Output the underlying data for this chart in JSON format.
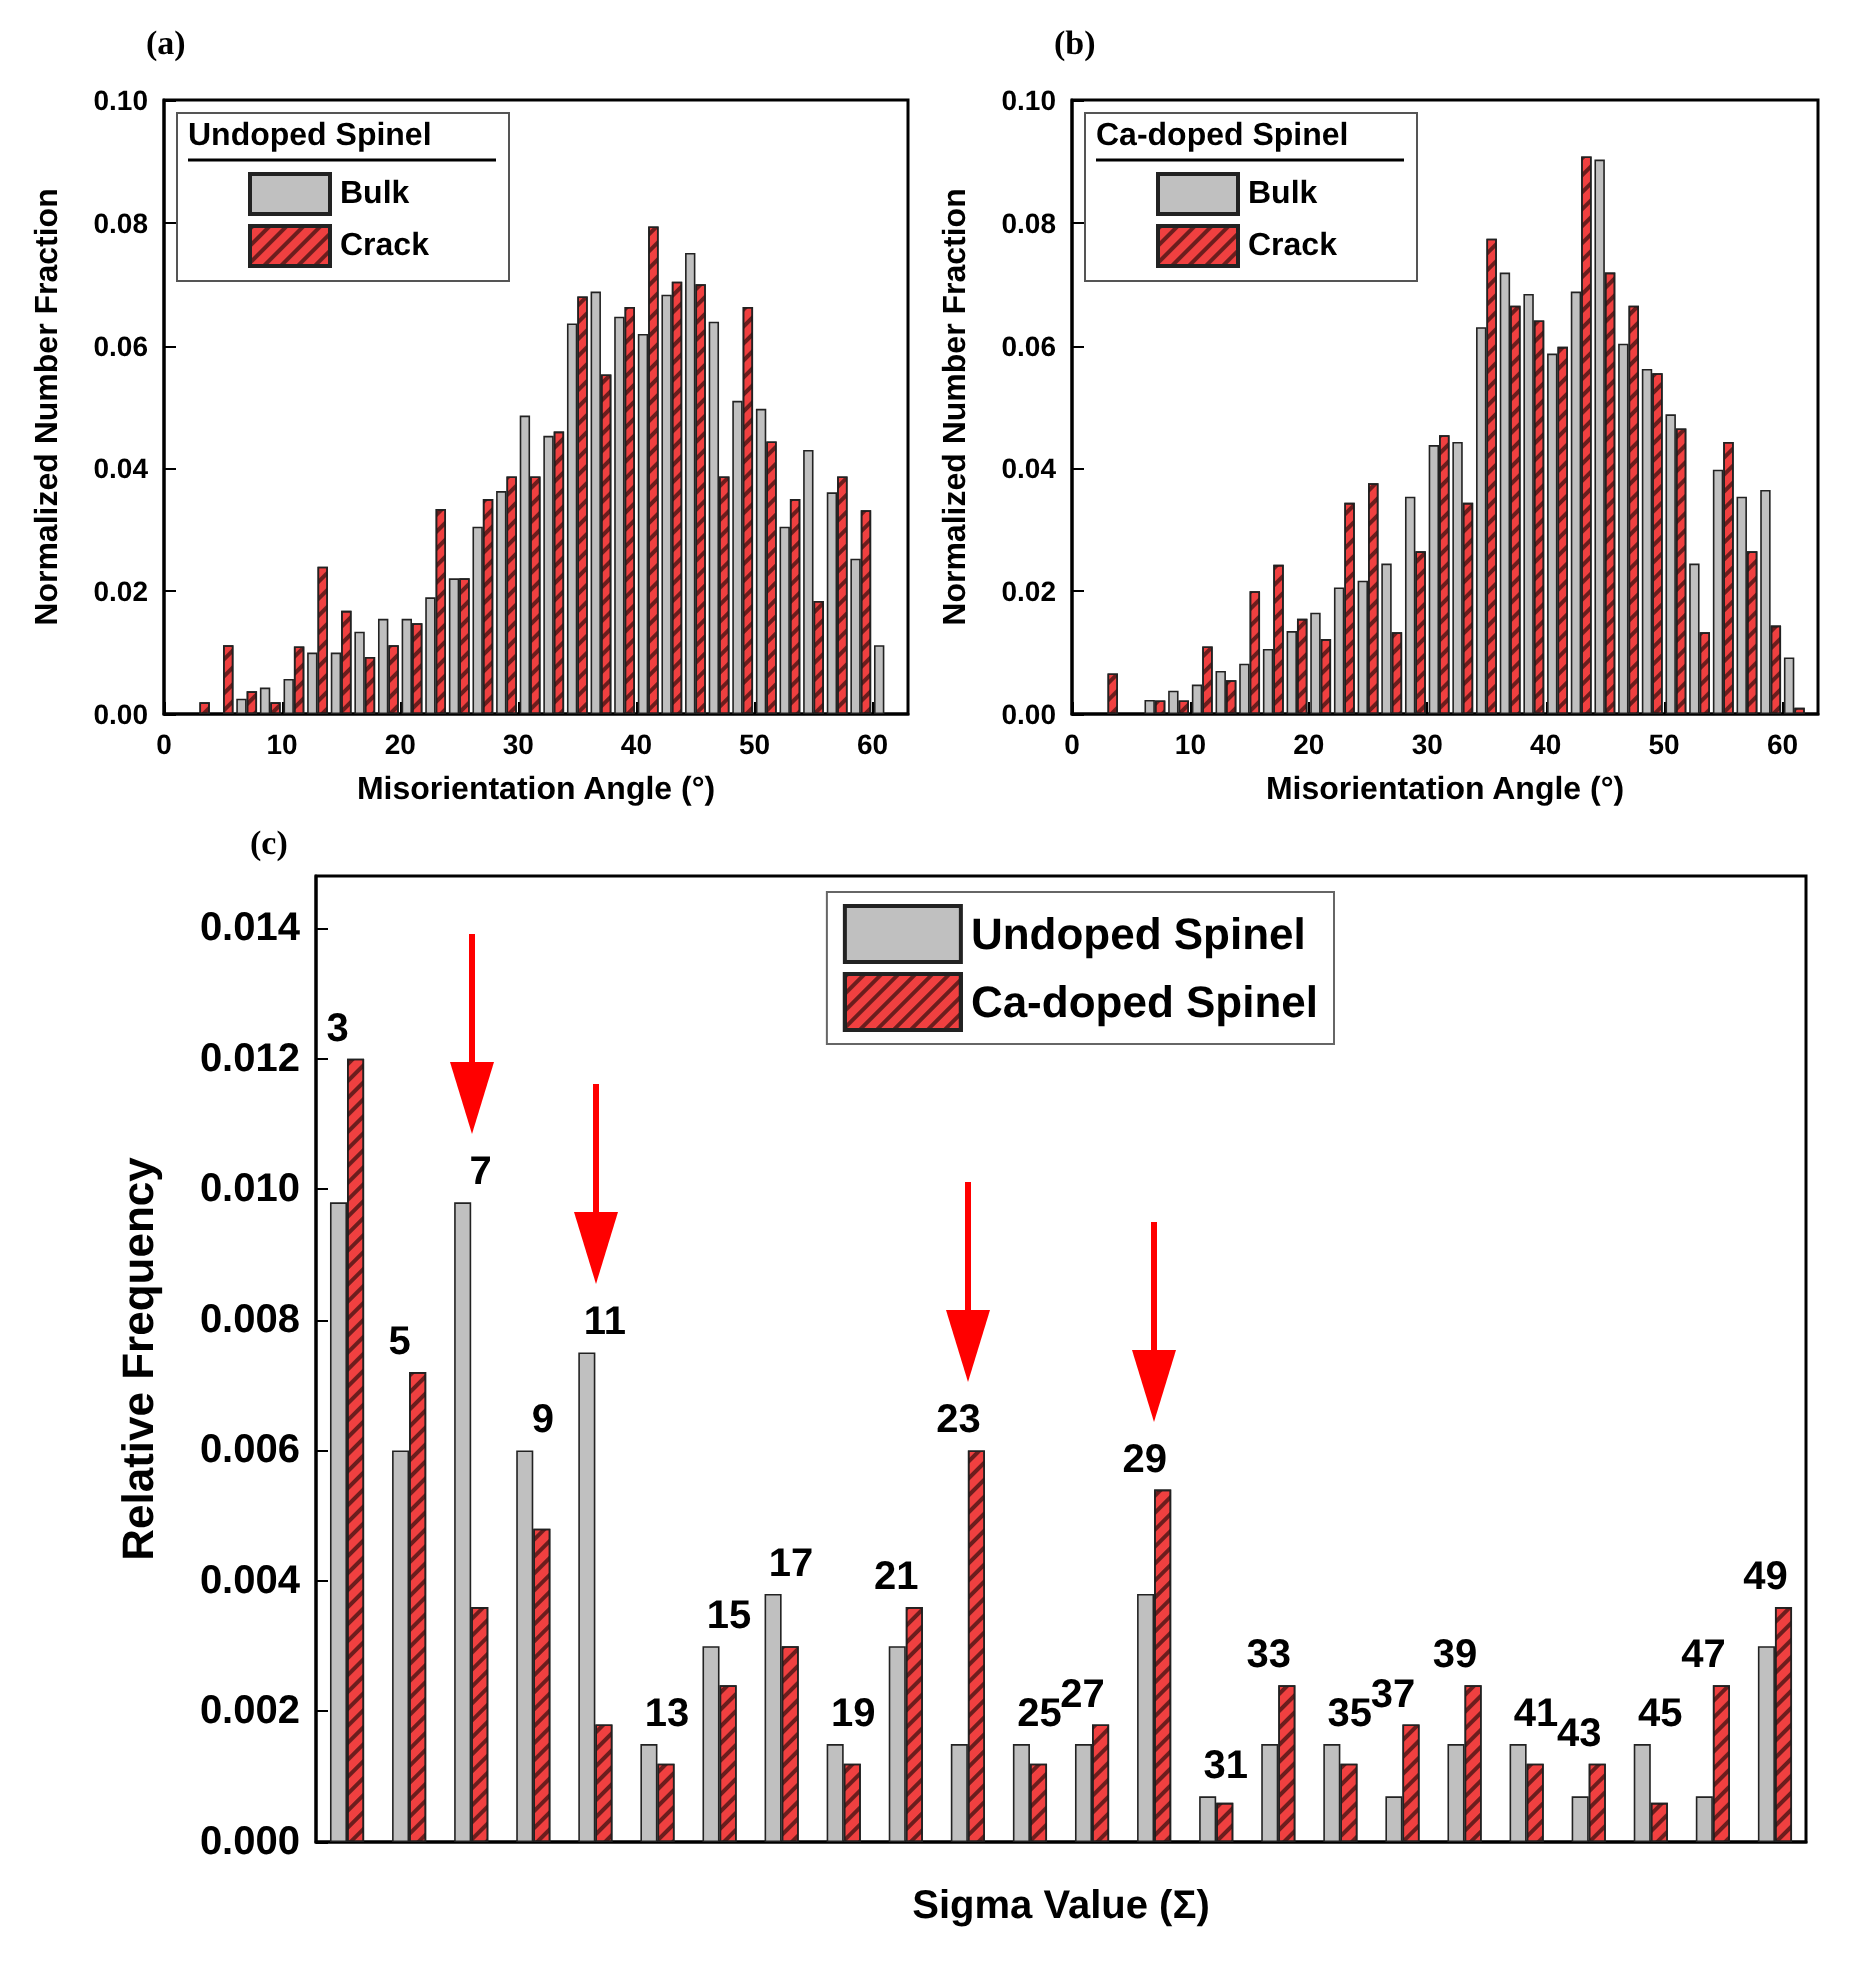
{
  "chart_data": [
    {
      "type": "bar",
      "title": "(a)",
      "xlabel": "Misorientation Angle (°)",
      "ylabel": "Normalized Number Fraction",
      "legend_title": "Undoped Spinel",
      "legend": "top left",
      "grid": false,
      "x": [
        3,
        5,
        7,
        9,
        11,
        13,
        15,
        17,
        19,
        21,
        23,
        25,
        27,
        29,
        31,
        33,
        35,
        37,
        39,
        41,
        43,
        45,
        47,
        49,
        51,
        53,
        55,
        57,
        59,
        61
      ],
      "series": [
        {
          "name": "Bulk",
          "color": "#c0c0c0",
          "values": [
            null,
            null,
            0.0025,
            0.0043,
            0.0057,
            0.01,
            0.01,
            0.0134,
            0.0155,
            0.0155,
            0.019,
            0.0221,
            0.0305,
            0.0363,
            0.0486,
            0.0453,
            0.0636,
            0.0688,
            0.0647,
            0.0619,
            0.0683,
            0.0751,
            0.0639,
            0.051,
            0.0497,
            0.0305,
            0.043,
            0.0361,
            0.0253,
            0.0112
          ]
        },
        {
          "name": "Crack",
          "color": "#f04040",
          "values": [
            0.0019,
            0.0112,
            0.0037,
            0.0019,
            0.011,
            0.024,
            0.0168,
            0.0093,
            0.0112,
            0.0148,
            0.0334,
            0.0221,
            0.035,
            0.0387,
            0.0387,
            0.046,
            0.068,
            0.0553,
            0.0663,
            0.0794,
            0.0704,
            0.07,
            0.0387,
            0.0663,
            0.0444,
            0.035,
            0.0184,
            0.0387,
            0.0332,
            null
          ]
        }
      ],
      "xlim": [
        0,
        63
      ],
      "xticks": [
        0,
        10,
        20,
        30,
        40,
        50,
        60
      ],
      "ylim": [
        0,
        0.1
      ],
      "yticks": [
        {
          "value": 0,
          "label": "0.00"
        },
        {
          "value": 0.02,
          "label": "0.02"
        },
        {
          "value": 0.04,
          "label": "0.04"
        },
        {
          "value": 0.06,
          "label": "0.06"
        },
        {
          "value": 0.08,
          "label": "0.08"
        },
        {
          "value": 0.1,
          "label": "0.10"
        }
      ]
    },
    {
      "type": "bar",
      "title": "(b)",
      "xlabel": "Misorientation Angle (°)",
      "ylabel": "Normalized Number Fraction",
      "legend_title": "Ca-doped Spinel",
      "legend": "top left",
      "grid": false,
      "x": [
        3,
        5,
        7,
        9,
        11,
        13,
        15,
        17,
        19,
        21,
        23,
        25,
        27,
        29,
        31,
        33,
        35,
        37,
        39,
        41,
        43,
        45,
        47,
        49,
        51,
        53,
        55,
        57,
        59,
        61
      ],
      "series": [
        {
          "name": "Bulk",
          "color": "#c0c0c0",
          "values": [
            null,
            null,
            0.0023,
            0.0038,
            0.0048,
            0.007,
            0.0082,
            0.0106,
            0.0135,
            0.0165,
            0.0206,
            0.0217,
            0.0245,
            0.0354,
            0.0438,
            0.0443,
            0.063,
            0.0719,
            0.0684,
            0.0587,
            0.0688,
            0.0903,
            0.0603,
            0.0562,
            0.0488,
            0.0245,
            0.0398,
            0.0354,
            0.0365,
            0.0092
          ]
        },
        {
          "name": "Crack",
          "color": "#f04040",
          "values": [
            0.0066,
            null,
            0.0022,
            0.0022,
            0.011,
            0.0055,
            0.02,
            0.0243,
            0.0155,
            0.0122,
            0.0344,
            0.0376,
            0.0133,
            0.0265,
            0.0454,
            0.0344,
            0.0774,
            0.0665,
            0.0641,
            0.0598,
            0.0908,
            0.0719,
            0.0665,
            0.0555,
            0.0465,
            0.0133,
            0.0443,
            0.0265,
            0.0144,
            0.001
          ]
        }
      ],
      "xlim": [
        0,
        63
      ],
      "xticks": [
        0,
        10,
        20,
        30,
        40,
        50,
        60
      ],
      "ylim": [
        0,
        0.1
      ],
      "yticks": [
        {
          "value": 0,
          "label": "0.00"
        },
        {
          "value": 0.02,
          "label": "0.02"
        },
        {
          "value": 0.04,
          "label": "0.04"
        },
        {
          "value": 0.06,
          "label": "0.06"
        },
        {
          "value": 0.08,
          "label": "0.08"
        },
        {
          "value": 0.1,
          "label": "0.10"
        }
      ]
    },
    {
      "type": "bar",
      "title": "(c)",
      "xlabel": "Sigma Value (Σ)",
      "ylabel": "Relative Frequency",
      "legend": "top right",
      "grid": false,
      "tick_labels": "y",
      "categories": [
        "3",
        "5",
        "7",
        "9",
        "11",
        "13",
        "15",
        "17",
        "19",
        "21",
        "23",
        "25",
        "27",
        "29",
        "31",
        "33",
        "35",
        "37",
        "39",
        "41",
        "43",
        "45",
        "47",
        "49"
      ],
      "series": [
        {
          "name": "Undoped Spinel",
          "color": "#c0c0c0",
          "values": [
            0.0098,
            0.006,
            0.0098,
            0.006,
            0.0075,
            0.0015,
            0.003,
            0.0038,
            0.0015,
            0.003,
            0.0015,
            0.0015,
            0.0015,
            0.0038,
            0.0007,
            0.0015,
            0.0015,
            0.0007,
            0.0015,
            0.0015,
            0.0007,
            0.0015,
            0.0007,
            0.003
          ]
        },
        {
          "name": "Ca-doped Spinel",
          "color": "#f04040",
          "values": [
            0.012,
            0.0072,
            0.0036,
            0.0048,
            0.0018,
            0.0012,
            0.0024,
            0.003,
            0.0012,
            0.0036,
            0.006,
            0.0012,
            0.0018,
            0.0054,
            0.0006,
            0.0024,
            0.0012,
            0.0018,
            0.0024,
            0.0012,
            0.0012,
            0.0006,
            0.0024,
            0.0036
          ]
        }
      ],
      "ylim": [
        0,
        0.0148
      ],
      "yticks": [
        {
          "value": 0,
          "label": "0.000"
        },
        {
          "value": 0.002,
          "label": "0.002"
        },
        {
          "value": 0.004,
          "label": "0.004"
        },
        {
          "value": 0.006,
          "label": "0.006"
        },
        {
          "value": 0.008,
          "label": "0.008"
        },
        {
          "value": 0.01,
          "label": "0.010"
        },
        {
          "value": 0.012,
          "label": "0.012"
        },
        {
          "value": 0.014,
          "label": "0.014"
        }
      ]
    }
  ]
}
